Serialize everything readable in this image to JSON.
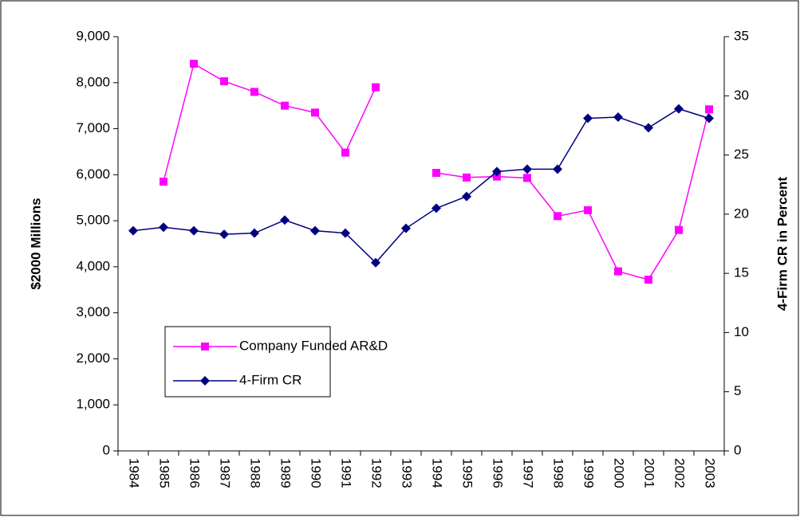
{
  "chart_data": {
    "type": "line",
    "y_label": "$2000 Millions",
    "y2_label": "4-Firm CR in Percent",
    "categories": [
      "1984",
      "1985",
      "1986",
      "1987",
      "1988",
      "1989",
      "1990",
      "1991",
      "1992",
      "1993",
      "1994",
      "1995",
      "1996",
      "1997",
      "1998",
      "1999",
      "2000",
      "2001",
      "2002",
      "2003"
    ],
    "series": [
      {
        "name": "Company Funded AR&D",
        "color": "#FF00FF",
        "marker": "square",
        "axis": "y",
        "values": [
          null,
          5850,
          8410,
          8030,
          7800,
          7500,
          7350,
          6480,
          7900,
          null,
          6040,
          5940,
          5960,
          5930,
          5100,
          5230,
          3900,
          3720,
          4800,
          7420
        ]
      },
      {
        "name": "4-Firm CR",
        "color": "#000080",
        "marker": "diamond",
        "axis": "y2",
        "values": [
          18.6,
          18.9,
          18.6,
          18.3,
          18.4,
          19.5,
          18.6,
          18.4,
          15.9,
          18.8,
          20.5,
          21.5,
          23.6,
          23.8,
          23.8,
          28.1,
          28.2,
          27.3,
          28.9,
          28.1
        ]
      }
    ],
    "ylim": [
      0,
      9000
    ],
    "yticks": [
      0,
      {
        "value": 1000,
        "label": "1,000"
      },
      {
        "value": 2000,
        "label": "2,000"
      },
      {
        "value": 3000,
        "label": "3,000"
      },
      {
        "value": 4000,
        "label": "4,000"
      },
      {
        "value": 5000,
        "label": "5,000"
      },
      {
        "value": 6000,
        "label": "6,000"
      },
      {
        "value": 7000,
        "label": "7,000"
      },
      {
        "value": 8000,
        "label": "8,000"
      },
      {
        "value": 9000,
        "label": "9,000"
      }
    ],
    "y2lim": [
      0,
      35
    ],
    "y2ticks": [
      0,
      5,
      10,
      15,
      20,
      25,
      30,
      35
    ],
    "grid": false,
    "legend": "lower-left"
  }
}
